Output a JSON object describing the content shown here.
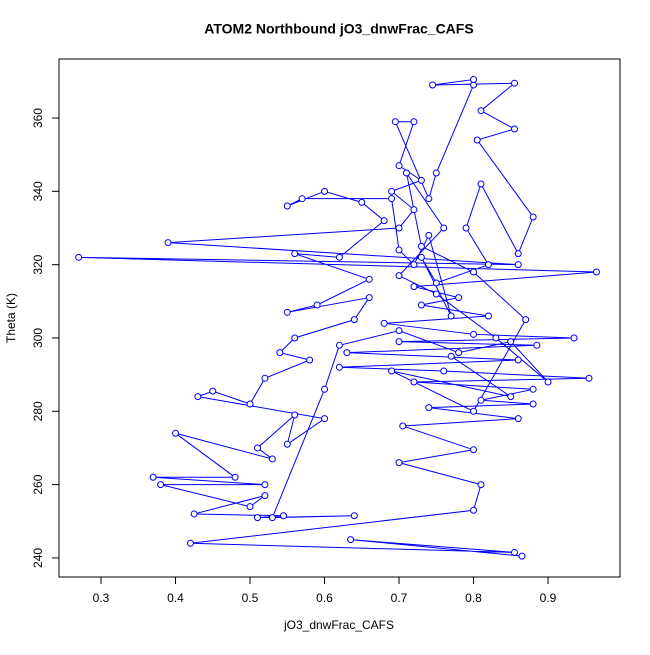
{
  "chart_data": {
    "type": "line",
    "title": "ATOM2 Northbound jO3_dnwFrac_CAFS",
    "xlabel": "jO3_dnwFrac_CAFS",
    "ylabel": "Theta (K)",
    "color": "#0000ff",
    "markers": "open-circle",
    "xlim": [
      0.2436,
      0.9966
    ],
    "ylim": [
      234.8,
      376.1
    ],
    "xticks": [
      0.3,
      0.4,
      0.5,
      0.6,
      0.7,
      0.8,
      0.9
    ],
    "yticks": [
      240,
      260,
      280,
      300,
      320,
      340,
      360
    ],
    "x": [
      0.865,
      0.635,
      0.855,
      0.42,
      0.8,
      0.81,
      0.7,
      0.8,
      0.705,
      0.86,
      0.74,
      0.88,
      0.81,
      0.88,
      0.72,
      0.955,
      0.76,
      0.62,
      0.86,
      0.63,
      0.885,
      0.7,
      0.935,
      0.8,
      0.68,
      0.82,
      0.73,
      0.78,
      0.72,
      0.965,
      0.27,
      0.86,
      0.39,
      0.7,
      0.72,
      0.69,
      0.73,
      0.7,
      0.72,
      0.695,
      0.74,
      0.75,
      0.8,
      0.8,
      0.745,
      0.855,
      0.81,
      0.855,
      0.805,
      0.88,
      0.86,
      0.81,
      0.79,
      0.82,
      0.75,
      0.73,
      0.77,
      0.74,
      0.72,
      0.7,
      0.69,
      0.57,
      0.55,
      0.6,
      0.65,
      0.68,
      0.62,
      0.56,
      0.66,
      0.59,
      0.55,
      0.66,
      0.64,
      0.56,
      0.54,
      0.58,
      0.52,
      0.5,
      0.45,
      0.43,
      0.6,
      0.55,
      0.56,
      0.51,
      0.53,
      0.4,
      0.48,
      0.37,
      0.52,
      0.38,
      0.5,
      0.52,
      0.425,
      0.545,
      0.51,
      0.64,
      0.53,
      0.6,
      0.62,
      0.7,
      0.78,
      0.85,
      0.9,
      0.83,
      0.75,
      0.7,
      0.76,
      0.71,
      0.73,
      0.8,
      0.87,
      0.8,
      0.69,
      0.85,
      0.77
    ],
    "values": [
      240.5,
      245,
      241.5,
      244,
      253,
      260,
      266,
      269.5,
      276,
      278,
      281,
      282,
      283,
      286,
      288,
      289,
      291,
      292,
      294,
      296,
      298,
      299,
      300,
      301,
      304,
      306,
      309,
      311,
      314,
      318,
      322,
      320,
      326,
      330,
      335,
      340,
      343,
      347,
      359,
      359,
      338,
      345,
      369,
      370.5,
      369,
      369.5,
      362,
      357,
      354,
      333,
      323,
      342,
      330,
      320,
      315,
      322,
      306,
      328,
      320,
      324,
      338,
      338,
      336,
      340,
      337,
      332,
      322,
      323,
      316,
      309,
      307,
      311,
      305,
      300,
      296,
      294,
      289,
      282,
      285.5,
      284,
      278,
      271,
      279,
      270,
      267,
      274,
      262,
      262,
      260,
      260,
      254,
      257,
      252,
      251.5,
      251,
      251.5,
      251,
      286,
      298,
      302,
      296,
      299,
      288,
      300,
      312,
      317,
      330,
      345,
      325,
      318,
      305,
      280,
      291,
      284,
      295
    ]
  }
}
